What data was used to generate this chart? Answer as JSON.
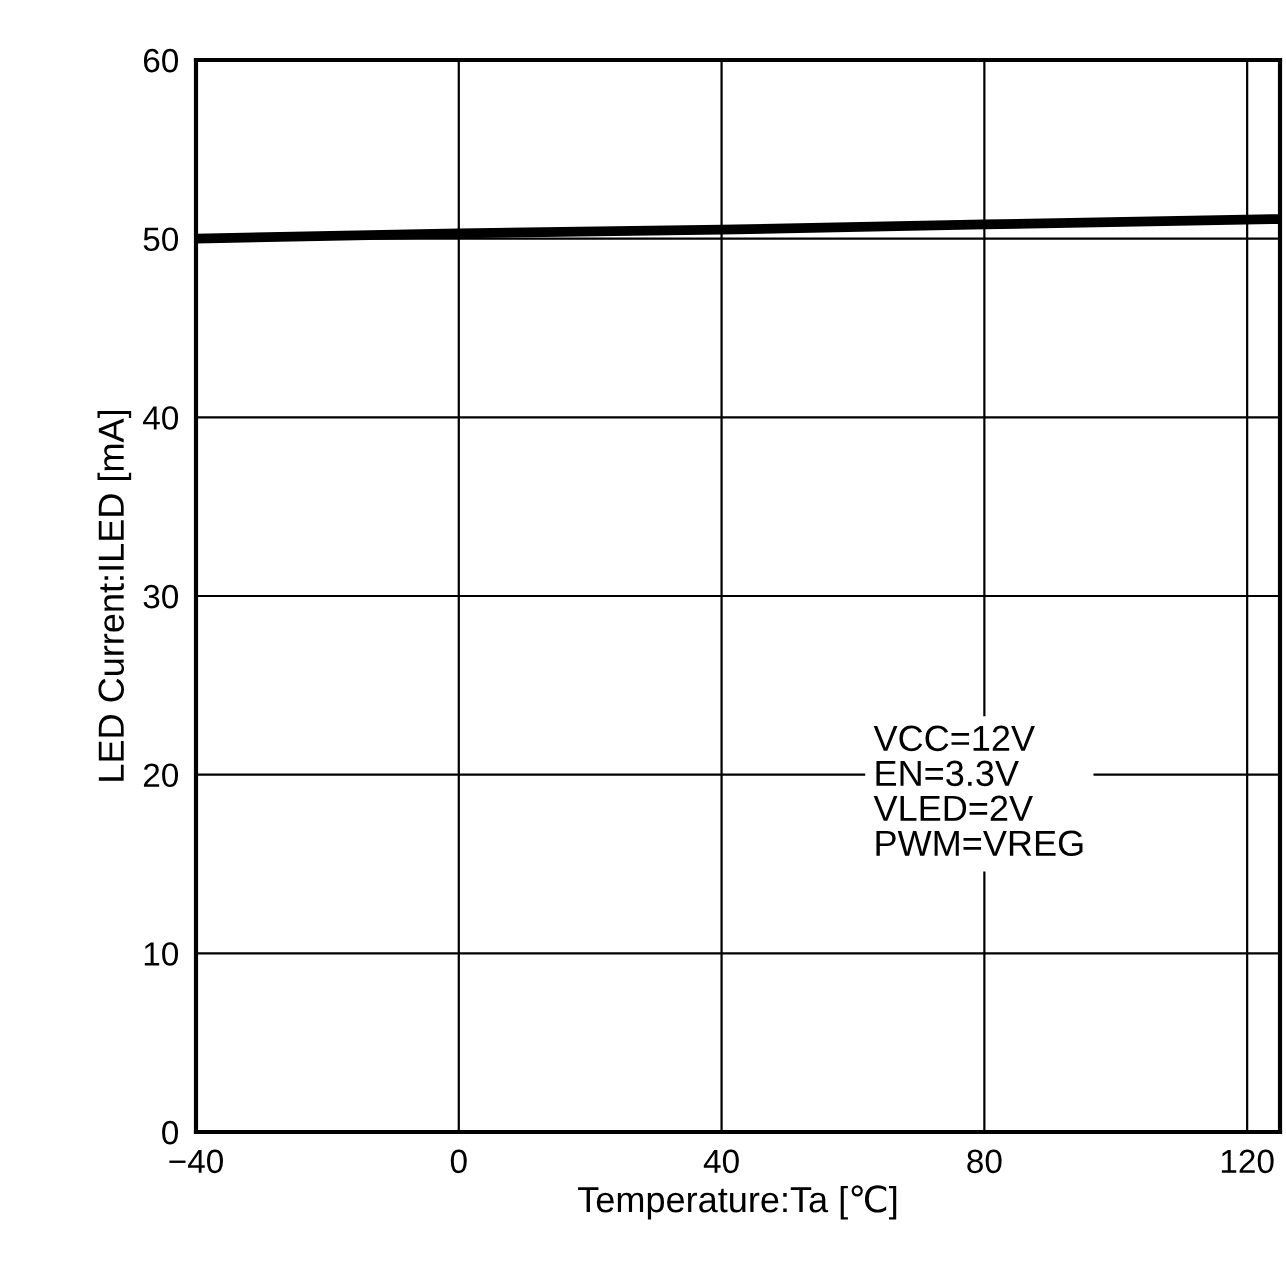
{
  "chart_data": {
    "type": "line",
    "xlabel": "Temperature:Ta [℃]",
    "ylabel": "LED Current:ILED [mA]",
    "x": [
      -40,
      0,
      40,
      80,
      125
    ],
    "series": [
      {
        "color": "#000000",
        "values": [
          50.0,
          50.3,
          50.5,
          50.8,
          51.1
        ]
      }
    ],
    "xlim": [
      -40,
      125
    ],
    "ylim": [
      0,
      60
    ],
    "xticks": [
      -40,
      0,
      40,
      80,
      120
    ],
    "yticks": [
      0,
      10,
      20,
      30,
      40,
      50,
      60
    ],
    "grid": true,
    "line_style": "solid",
    "marker": "none",
    "annotations": [
      "VCC=12V\nEN=3.3V\nVLED=2V\nPWM=VREG"
    ]
  }
}
